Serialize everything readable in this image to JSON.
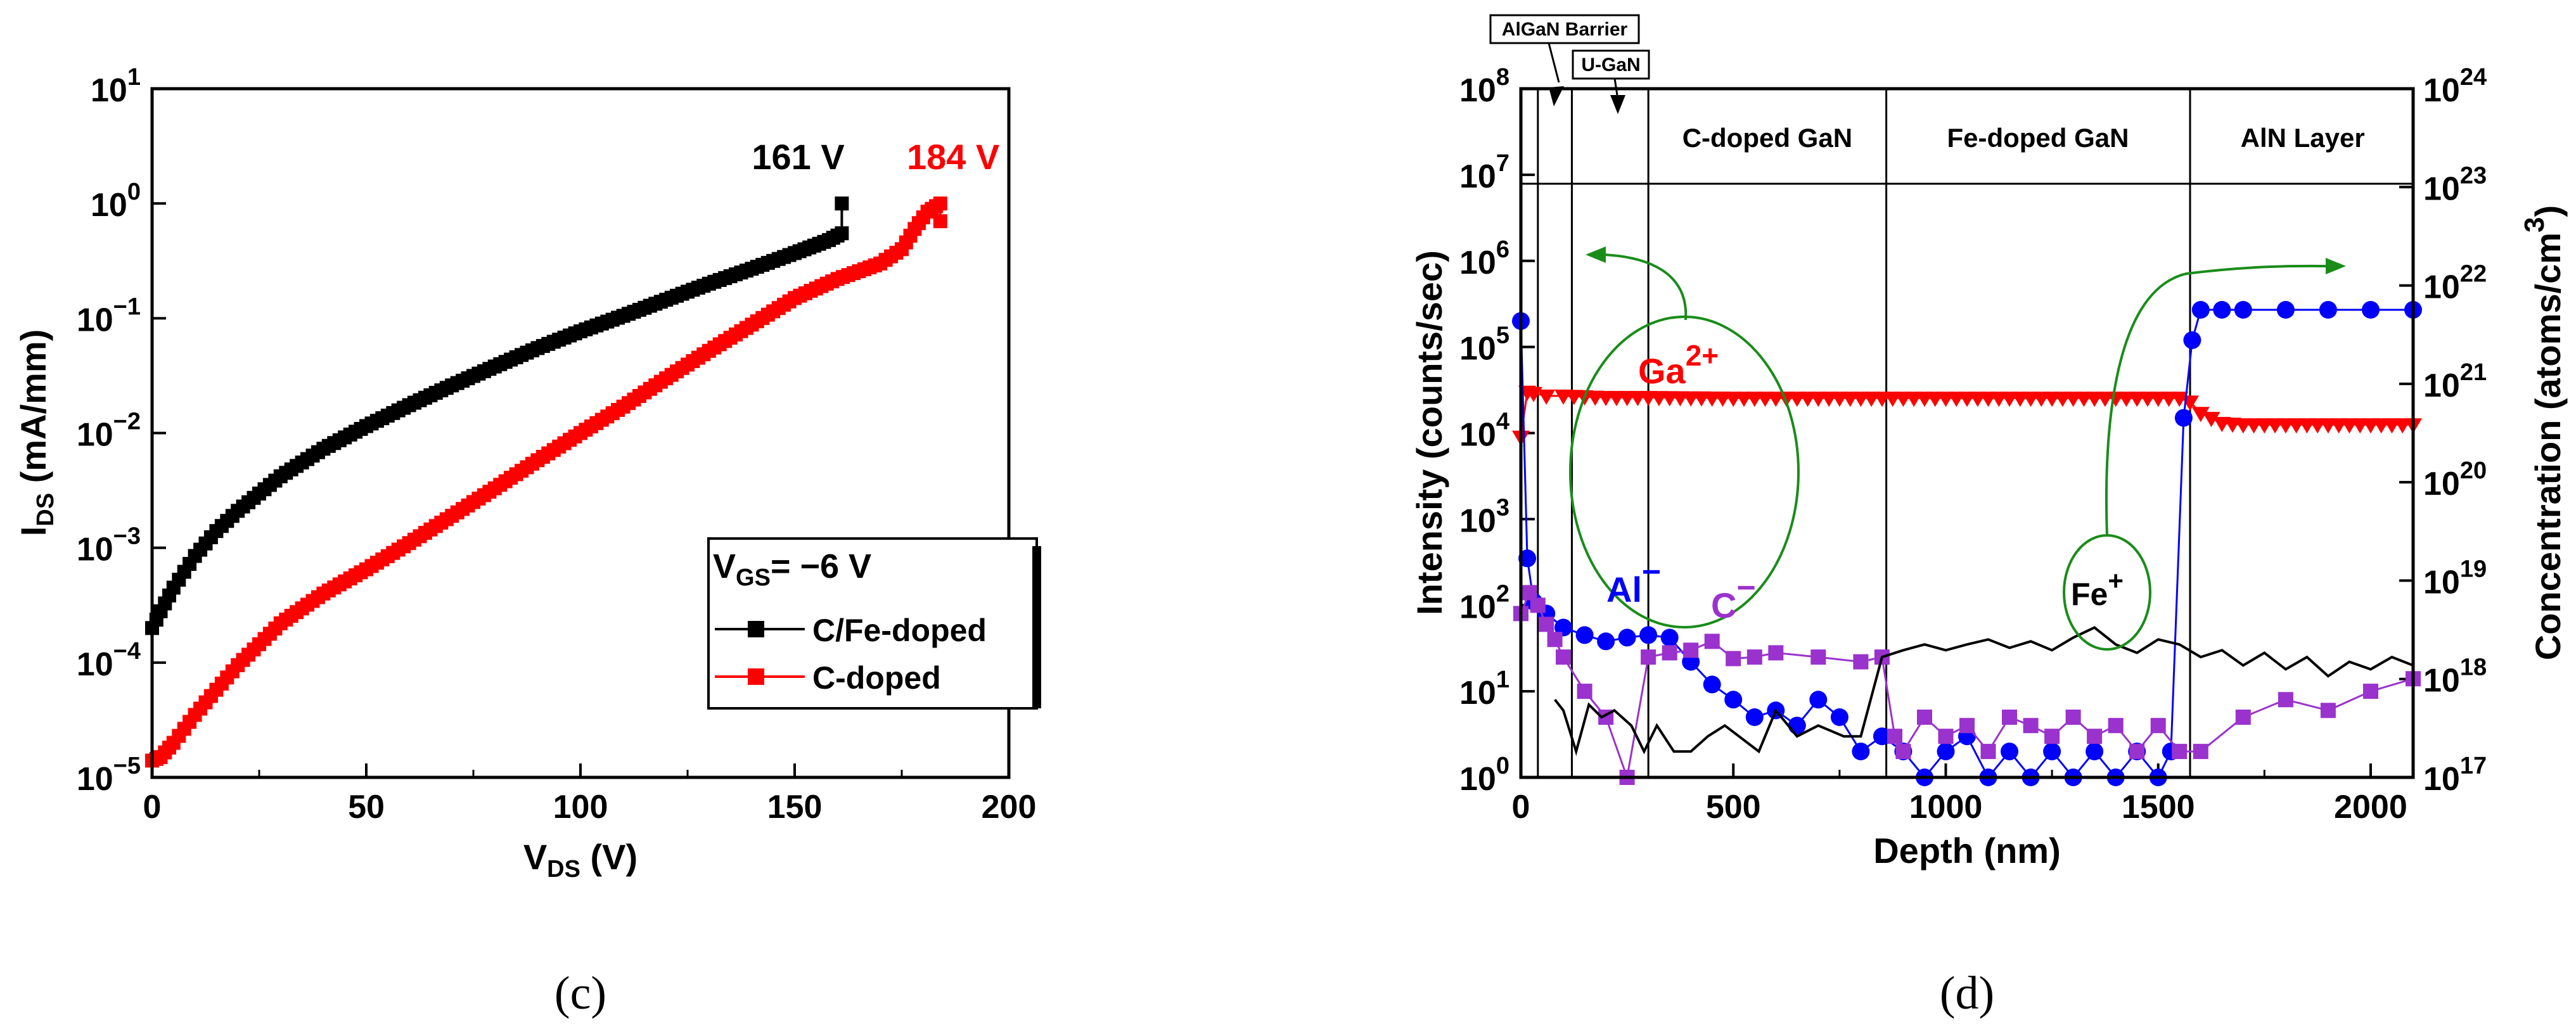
{
  "chart_data": [
    {
      "panel": "(c)",
      "type": "line",
      "title": "",
      "xlabel_main": "V",
      "xlabel_sub": "DS",
      "xlabel_unit": " (V)",
      "ylabel_main": "I",
      "ylabel_sub": "DS",
      "ylabel_unit": " (mA/mm)",
      "xscale": "linear",
      "yscale": "log",
      "xlim": [
        0,
        200
      ],
      "ylim_exp": [
        -5,
        1
      ],
      "xticks": [
        0,
        50,
        100,
        150,
        200
      ],
      "xtick_labels": [
        "0",
        "50",
        "100",
        "150",
        "200"
      ],
      "ytick_exps": [
        -5,
        -4,
        -3,
        -2,
        -1,
        0,
        1
      ],
      "ytick_base": "10",
      "ytick_sup": [
        "−5",
        "−4",
        "−3",
        "−2",
        "−1",
        "0",
        "1"
      ],
      "legend": {
        "title_main": "V",
        "title_sub": "GS",
        "title_rest": "= −6 V",
        "position": "lower-right"
      },
      "series": [
        {
          "name": "C/Fe-doped",
          "color": "#000000",
          "marker": "square",
          "x": [
            0,
            2,
            5,
            10,
            15,
            20,
            30,
            40,
            50,
            60,
            70,
            80,
            90,
            100,
            110,
            120,
            130,
            140,
            150,
            158,
            161,
            161
          ],
          "y": [
            0.0002,
            0.00028,
            0.00045,
            0.00085,
            0.0014,
            0.0021,
            0.0042,
            0.0073,
            0.0115,
            0.0175,
            0.026,
            0.038,
            0.055,
            0.077,
            0.105,
            0.145,
            0.2,
            0.27,
            0.37,
            0.48,
            0.55,
            1.0
          ]
        },
        {
          "name": "C-doped",
          "color": "#ff0000",
          "marker": "square",
          "x": [
            0,
            2,
            5,
            10,
            15,
            20,
            30,
            40,
            50,
            60,
            70,
            80,
            90,
            100,
            110,
            120,
            130,
            140,
            150,
            160,
            170,
            175,
            178,
            181,
            184,
            184
          ],
          "y": [
            1.4e-05,
            1.5e-05,
            2e-05,
            3.5e-05,
            5.8e-05,
            9.5e-05,
            0.00022,
            0.0004,
            0.00065,
            0.0011,
            0.0019,
            0.0033,
            0.0058,
            0.01,
            0.017,
            0.03,
            0.052,
            0.088,
            0.15,
            0.22,
            0.3,
            0.4,
            0.6,
            0.85,
            1.0,
            0.7
          ]
        }
      ],
      "annotations": [
        {
          "text": "161 V",
          "color": "#000000",
          "x": 140,
          "y_exp": 0.3
        },
        {
          "text": "184 V",
          "color": "#ff0000",
          "x": 187,
          "y_exp": 0.3
        }
      ]
    },
    {
      "panel": "(d)",
      "type": "line",
      "title": "",
      "xlabel": "Depth (nm)",
      "ylabel": "Intensity (counts/sec)",
      "ylabel_right_main": "Concentration (atoms/cm",
      "ylabel_right_sup": "3",
      "ylabel_right_close": ")",
      "xlim": [
        0,
        2100
      ],
      "xticks": [
        0,
        500,
        1000,
        1500,
        2000
      ],
      "xtick_labels": [
        "0",
        "500",
        "1000",
        "1500",
        "2000"
      ],
      "ylim_exp": [
        0,
        8
      ],
      "ytick_exps": [
        0,
        1,
        2,
        3,
        4,
        5,
        6,
        7,
        8
      ],
      "ytick_base": "10",
      "ytick_sup": [
        "0",
        "1",
        "2",
        "3",
        "4",
        "5",
        "6",
        "7",
        "8"
      ],
      "y2lim_exp": [
        17,
        24
      ],
      "y2tick_exps": [
        17,
        18,
        19,
        20,
        21,
        22,
        23,
        24
      ],
      "y2tick_sup": [
        "17",
        "18",
        "19",
        "20",
        "21",
        "22",
        "23",
        "24"
      ],
      "layer_boundaries": [
        40,
        120,
        300,
        860,
        1575
      ],
      "layer_labels": [
        {
          "text": "C-doped GaN",
          "x": 580
        },
        {
          "text": "Fe-doped GaN",
          "x": 1217
        },
        {
          "text": "AlN Layer",
          "x": 1840
        }
      ],
      "top_annotations": [
        {
          "text": "AlGaN Barrier",
          "x": 80
        },
        {
          "text": "U-GaN",
          "x": 210
        }
      ],
      "series": [
        {
          "name": "Ga2+",
          "label_main": "Ga",
          "label_sup": "2+",
          "color": "#ff0000",
          "marker": "triangle-down",
          "axis": "left",
          "x": [
            0,
            15,
            30,
            60,
            100,
            200,
            300,
            500,
            800,
            1000,
            1200,
            1400,
            1550,
            1575,
            1600,
            1650,
            1700,
            1800,
            1900,
            2000,
            2100
          ],
          "y": [
            9000,
            30000,
            29000,
            27000,
            27000,
            26000,
            26000,
            25500,
            25500,
            25500,
            25500,
            25500,
            25500,
            23000,
            17000,
            13000,
            12500,
            12500,
            12500,
            12500,
            12500
          ]
        },
        {
          "name": "Al-",
          "label_main": "Al",
          "label_sup": "−",
          "color": "#0000ff",
          "marker": "circle",
          "axis": "left",
          "x": [
            0,
            15,
            30,
            60,
            100,
            150,
            200,
            250,
            300,
            350,
            400,
            450,
            500,
            550,
            600,
            650,
            700,
            750,
            800,
            850,
            900,
            950,
            1000,
            1050,
            1100,
            1150,
            1200,
            1250,
            1300,
            1350,
            1400,
            1450,
            1500,
            1530,
            1560,
            1580,
            1600,
            1650,
            1700,
            1800,
            1900,
            2000,
            2100
          ],
          "y": [
            200000,
            350,
            110,
            80,
            55,
            45,
            38,
            42,
            45,
            42,
            22,
            12,
            8,
            5,
            6,
            4,
            8,
            5,
            2,
            3,
            2,
            1,
            2,
            3,
            1,
            2,
            1,
            2,
            1,
            2,
            1,
            2,
            1,
            2,
            15000,
            120000,
            270000,
            270000,
            270000,
            270000,
            270000,
            270000,
            270000
          ]
        },
        {
          "name": "C-",
          "label_main": "C",
          "label_sup": "−",
          "color": "#9a32cd",
          "marker": "square",
          "axis": "left",
          "x": [
            0,
            20,
            40,
            60,
            80,
            100,
            150,
            200,
            250,
            300,
            350,
            400,
            450,
            500,
            550,
            600,
            700,
            800,
            850,
            880,
            900,
            950,
            1000,
            1050,
            1100,
            1150,
            1200,
            1250,
            1300,
            1350,
            1400,
            1450,
            1500,
            1550,
            1600,
            1700,
            1800,
            1900,
            2000,
            2100
          ],
          "y": [
            80,
            140,
            100,
            60,
            40,
            25,
            10,
            5,
            1,
            25,
            28,
            30,
            38,
            24,
            25,
            28,
            25,
            22,
            25,
            3,
            2,
            5,
            3,
            4,
            2,
            5,
            4,
            3,
            5,
            3,
            4,
            2,
            4,
            2,
            2,
            5,
            8,
            6,
            10,
            14
          ]
        },
        {
          "name": "Fe+",
          "label_main": "Fe",
          "label_sup": "+",
          "color": "#000000",
          "marker": "none",
          "axis": "left",
          "x": [
            80,
            100,
            130,
            160,
            190,
            220,
            260,
            290,
            320,
            360,
            400,
            440,
            480,
            560,
            600,
            650,
            700,
            760,
            800,
            850,
            900,
            950,
            1000,
            1050,
            1100,
            1150,
            1200,
            1250,
            1300,
            1350,
            1400,
            1450,
            1500,
            1550,
            1600,
            1650,
            1700,
            1750,
            1800,
            1850,
            1900,
            1950,
            2000,
            2050,
            2100
          ],
          "y": [
            8,
            6,
            2,
            7,
            5,
            6,
            4,
            2,
            4,
            2,
            2,
            3,
            4,
            2,
            6,
            3,
            4,
            3,
            3,
            25,
            30,
            35,
            30,
            35,
            40,
            32,
            38,
            30,
            42,
            55,
            35,
            28,
            40,
            35,
            25,
            30,
            20,
            28,
            18,
            25,
            15,
            22,
            18,
            25,
            20
          ]
        }
      ]
    }
  ]
}
